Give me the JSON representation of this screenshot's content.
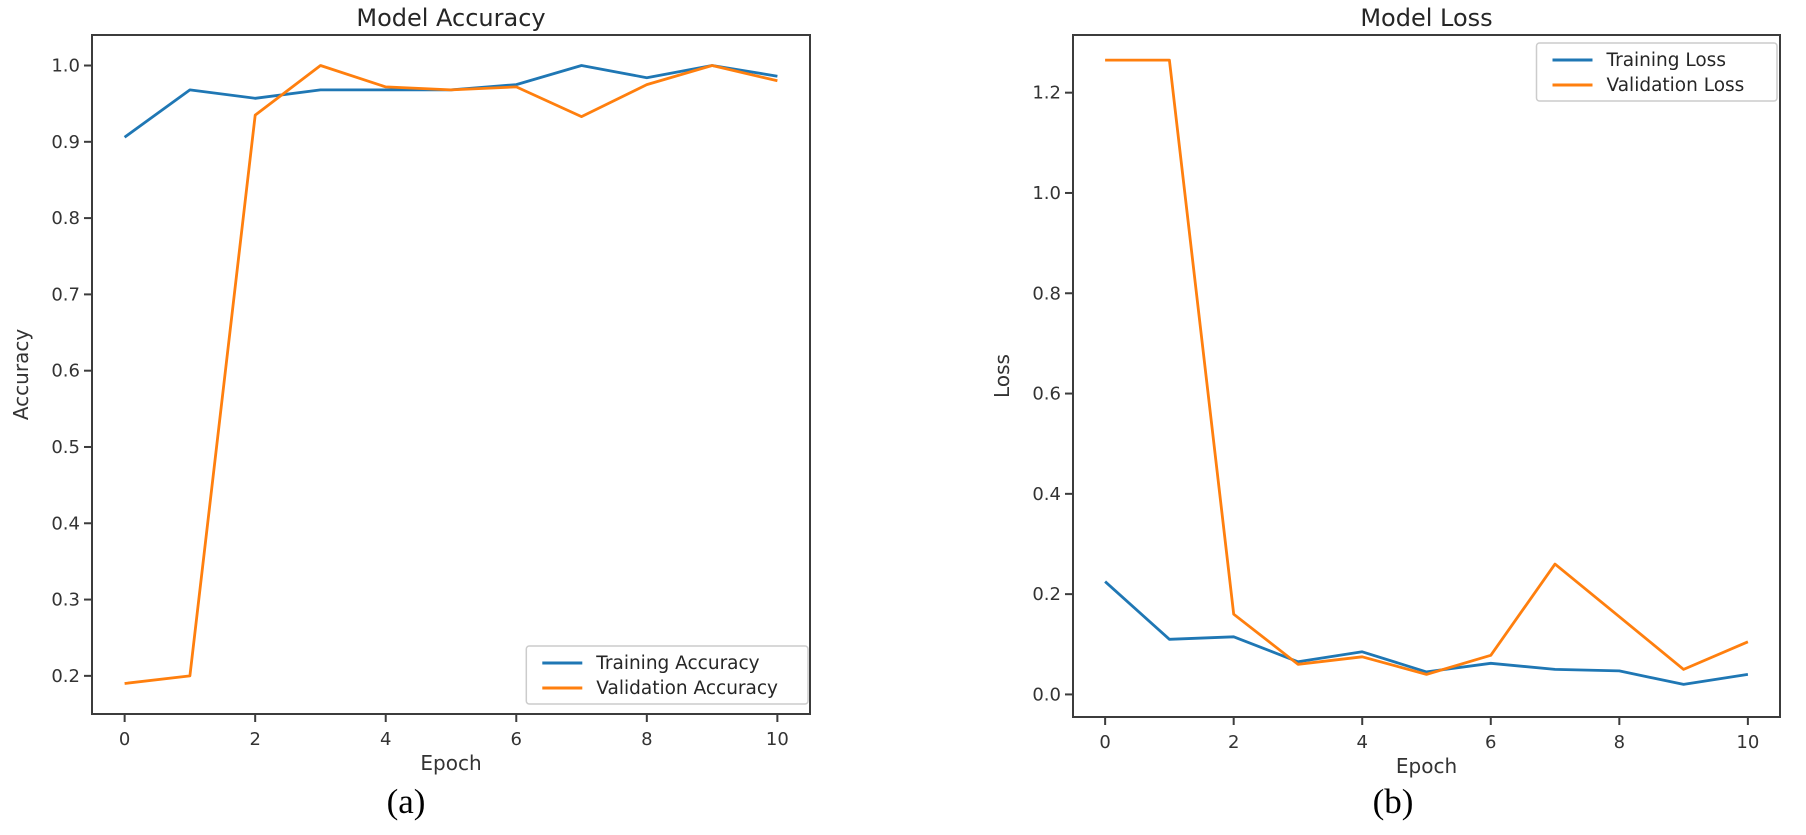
{
  "page": {
    "background": "#ffffff"
  },
  "colors": {
    "training_line": "#1f77b4",
    "validation_line": "#ff7f0e",
    "spine": "#3c3c3c",
    "tick_text": "#333333",
    "title_text": "#262626",
    "legend_border": "#cccccc",
    "legend_bg": "#ffffff"
  },
  "captions": {
    "a": "(a)",
    "b": "(b)"
  },
  "chart_data": [
    {
      "id": "accuracy",
      "type": "line",
      "title": "Model Accuracy",
      "xlabel": "Epoch",
      "ylabel": "Accuracy",
      "x": [
        0,
        1,
        2,
        3,
        4,
        5,
        6,
        7,
        8,
        9,
        10
      ],
      "xlim": [
        -0.5,
        10.5
      ],
      "ylim": [
        0.15,
        1.04
      ],
      "xticks": [
        0,
        2,
        4,
        6,
        8,
        10
      ],
      "yticks": [
        0.2,
        0.3,
        0.4,
        0.5,
        0.6,
        0.7,
        0.8,
        0.9,
        1.0
      ],
      "grid": false,
      "legend_position": "lower-right",
      "series": [
        {
          "name": "Training Accuracy",
          "color": "#1f77b4",
          "values": [
            0.906,
            0.968,
            0.957,
            0.968,
            0.968,
            0.968,
            0.975,
            1.0,
            0.984,
            1.0,
            0.986
          ]
        },
        {
          "name": "Validation Accuracy",
          "color": "#ff7f0e",
          "values": [
            0.19,
            0.2,
            0.935,
            1.0,
            0.972,
            0.968,
            0.972,
            0.933,
            0.975,
            1.0,
            0.98
          ]
        }
      ],
      "caption": "(a)"
    },
    {
      "id": "loss",
      "type": "line",
      "title": "Model Loss",
      "xlabel": "Epoch",
      "ylabel": "Loss",
      "x": [
        0,
        1,
        2,
        3,
        4,
        5,
        6,
        7,
        8,
        9,
        10
      ],
      "xlim": [
        -0.5,
        10.5
      ],
      "ylim": [
        -0.045,
        1.315
      ],
      "xticks": [
        0,
        2,
        4,
        6,
        8,
        10
      ],
      "yticks": [
        0.0,
        0.2,
        0.4,
        0.6,
        0.8,
        1.0,
        1.2
      ],
      "grid": false,
      "legend_position": "upper-right",
      "series": [
        {
          "name": "Training Loss",
          "color": "#1f77b4",
          "values": [
            0.225,
            0.11,
            0.115,
            0.065,
            0.085,
            0.045,
            0.062,
            0.05,
            0.047,
            0.02,
            0.04
          ]
        },
        {
          "name": "Validation Loss",
          "color": "#ff7f0e",
          "values": [
            1.265,
            1.265,
            0.16,
            0.06,
            0.075,
            0.04,
            0.078,
            0.26,
            0.155,
            0.05,
            0.105
          ]
        }
      ],
      "caption": "(b)"
    }
  ]
}
